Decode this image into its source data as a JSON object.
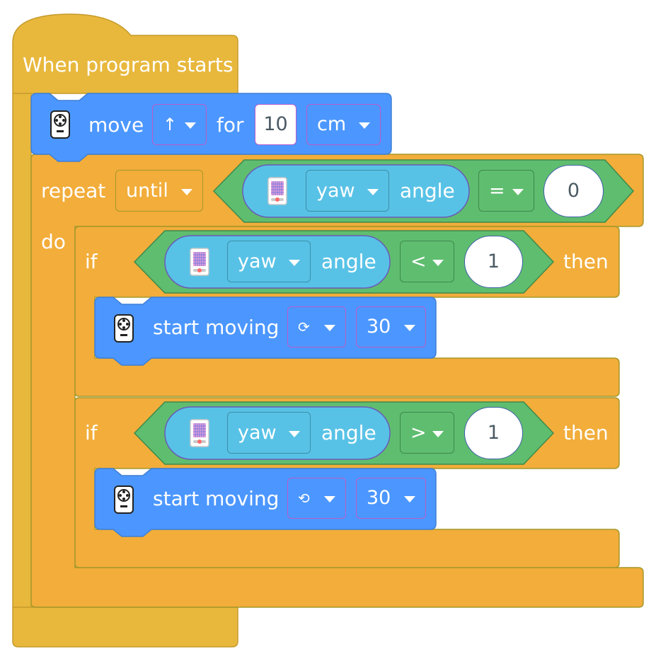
{
  "hat": {
    "label": "When program starts"
  },
  "move_block": {
    "label": "move",
    "direction": "↑",
    "for_label": "for",
    "distance": "10",
    "unit": "cm"
  },
  "repeat_block": {
    "label": "repeat",
    "mode": "until",
    "do_label": "do",
    "condition": {
      "sensor_axis": "yaw",
      "sensor_label": "angle",
      "operator": "=",
      "value": "0"
    }
  },
  "if_blocks": [
    {
      "if_label": "if",
      "then_label": "then",
      "condition": {
        "sensor_axis": "yaw",
        "sensor_label": "angle",
        "operator": "<",
        "value": "1"
      },
      "action": {
        "label": "start moving",
        "rotation": "⟳",
        "speed": "30"
      }
    },
    {
      "if_label": "if",
      "then_label": "then",
      "condition": {
        "sensor_axis": "yaw",
        "sensor_label": "angle",
        "operator": ">",
        "value": "1"
      },
      "action": {
        "label": "start moving",
        "rotation": "⟲",
        "speed": "30"
      }
    }
  ],
  "colors": {
    "events": "#e8b83d",
    "motion": "#4c97ff",
    "control": "#f2ad3a",
    "operator": "#5fbd6f",
    "sensor": "#58c2e6"
  },
  "icons": {
    "remote_icon": "remote-control-icon",
    "sensor_icon": "sensor-board-icon"
  }
}
